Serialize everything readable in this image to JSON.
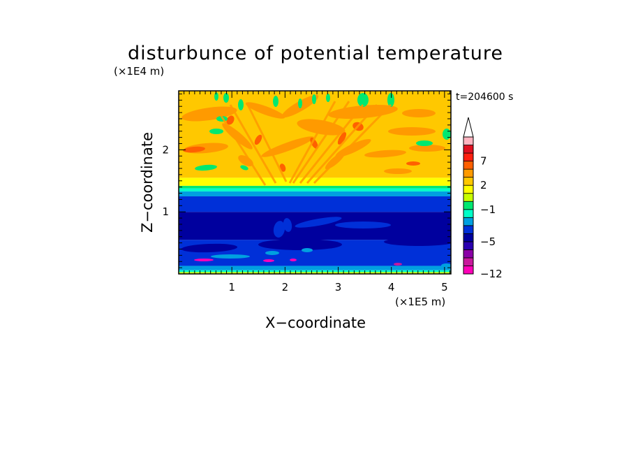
{
  "chart_data": {
    "type": "heatmap",
    "title": "disturbunce of potential temperature",
    "time_label": "t=204600 s",
    "xlabel": "X−coordinate",
    "ylabel": "Z−coordinate",
    "x_unit": "(×1E5 m)",
    "y_unit": "(×1E4 m)",
    "xlim": [
      0,
      5.12
    ],
    "ylim": [
      0,
      2.95
    ],
    "x_ticks": [
      1,
      2,
      3,
      4,
      5
    ],
    "x_tick_labels": [
      "1",
      "2",
      "3",
      "4",
      "5"
    ],
    "y_ticks": [
      1,
      2
    ],
    "y_tick_labels": [
      "1",
      "2"
    ],
    "colorbar": {
      "levels": [
        -12,
        -11,
        -9,
        -7,
        -5,
        -4,
        -3,
        -2,
        -1,
        0,
        1,
        2,
        3,
        5,
        7,
        9,
        11
      ],
      "colors": [
        "#ff00b8",
        "#c8199c",
        "#8a00a6",
        "#2a00b0",
        "#00009e",
        "#0030d8",
        "#00a0e0",
        "#00ffc8",
        "#00e870",
        "#c8ff00",
        "#ffff00",
        "#ffc800",
        "#ff9a00",
        "#ff6000",
        "#ff2010",
        "#e01020",
        "#ffb4c0"
      ],
      "extend": "max",
      "tick_values": [
        7,
        2,
        -1,
        -5,
        -12
      ],
      "tick_labels": [
        "7",
        "2",
        "−1",
        "−5",
        "−12"
      ],
      "placement": "right"
    },
    "layers": [
      {
        "z_range": [
          0.0,
          0.03
        ],
        "value": 0,
        "desc": "surface"
      },
      {
        "z_range": [
          0.03,
          0.06
        ],
        "value": -2
      },
      {
        "z_range": [
          0.06,
          0.13
        ],
        "value": -3
      },
      {
        "z_range": [
          0.13,
          0.55
        ],
        "value": -4
      },
      {
        "z_range": [
          0.55,
          1.0
        ],
        "value": -5
      },
      {
        "z_range": [
          1.0,
          1.25
        ],
        "value": -4
      },
      {
        "z_range": [
          1.25,
          1.33
        ],
        "value": -3
      },
      {
        "z_range": [
          1.33,
          1.38
        ],
        "value": -2
      },
      {
        "z_range": [
          1.38,
          1.42
        ],
        "value": -1
      },
      {
        "z_range": [
          1.42,
          1.55
        ],
        "value": 1
      },
      {
        "z_range": [
          1.55,
          2.95
        ],
        "value": 2
      }
    ]
  }
}
